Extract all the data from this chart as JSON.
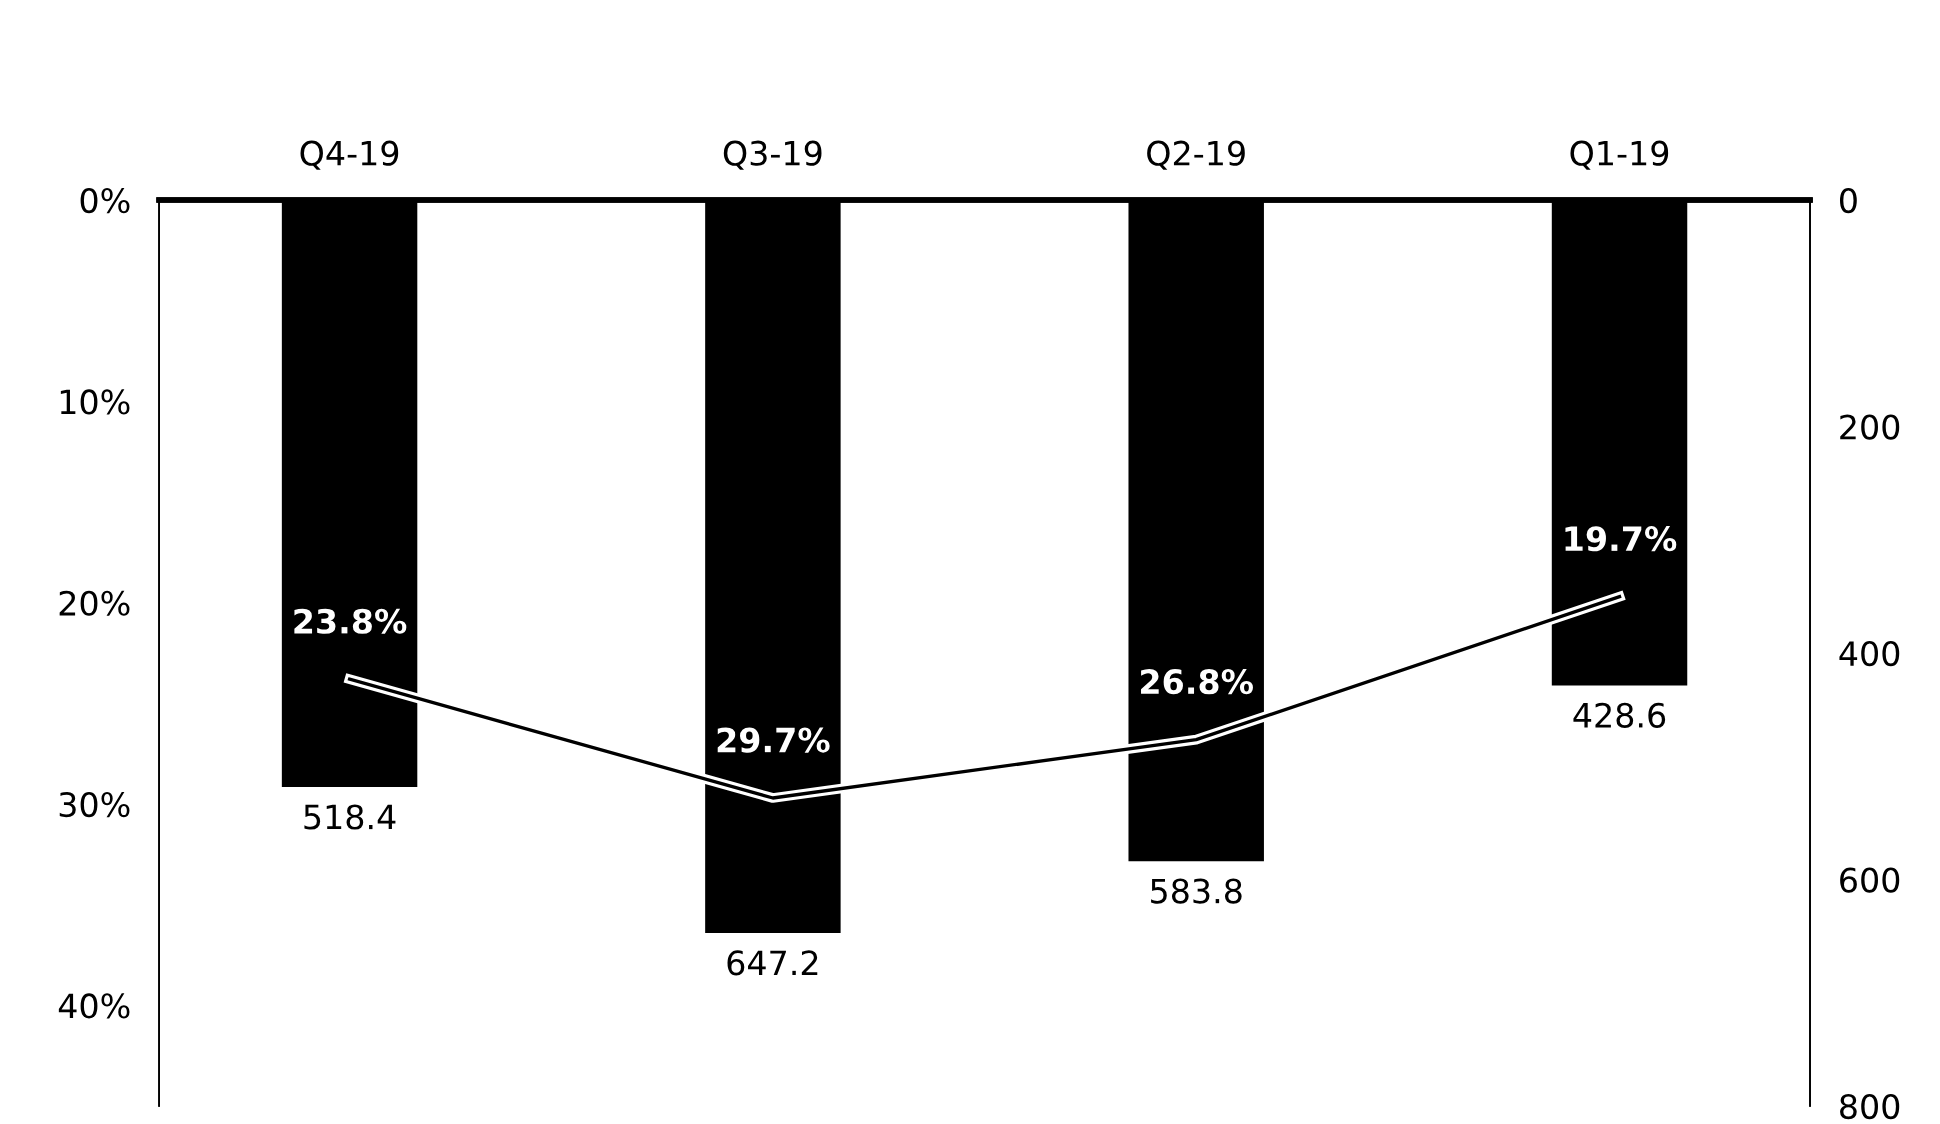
{
  "chart_data": {
    "type": "bar",
    "categories": [
      "Q4-19",
      "Q3-19",
      "Q2-19",
      "Q1-19"
    ],
    "series": [
      {
        "axis": "y2",
        "color": "#000000",
        "values": [
          518.4,
          647.2,
          583.8,
          428.6
        ],
        "value_labels": [
          "518.4",
          "647.2",
          "583.8",
          "428.6"
        ]
      },
      {
        "type": "line",
        "axis": "y",
        "color": "#000000",
        "line_style": "solid",
        "values": [
          23.8,
          29.7,
          26.8,
          19.7
        ],
        "value_labels": [
          "23.8%",
          "29.7%",
          "26.8%",
          "19.7%"
        ]
      }
    ],
    "ylim": [
      45,
      0
    ],
    "yticks": [
      {
        "value": 0,
        "label": "0%"
      },
      {
        "value": 10,
        "label": "10%"
      },
      {
        "value": 20,
        "label": "20%"
      },
      {
        "value": 30,
        "label": "30%"
      },
      {
        "value": 40,
        "label": "40%"
      }
    ],
    "y2lim": [
      800,
      0
    ],
    "y2ticks": [
      0,
      200,
      400,
      600,
      800
    ],
    "grid": false
  }
}
